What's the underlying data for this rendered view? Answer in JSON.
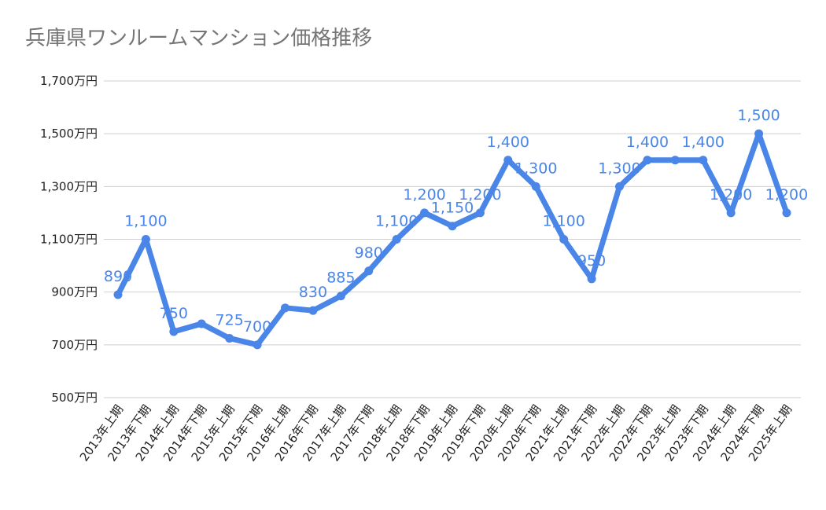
{
  "chart_data": {
    "type": "line",
    "title": "兵庫県ワンルームマンション価格推移",
    "xlabel": "",
    "ylabel": "",
    "ylim": [
      500,
      1700
    ],
    "yticks": [
      "500万円",
      "700万円",
      "900万円",
      "1,100万円",
      "1,300万円",
      "1,500万円",
      "1,700万円"
    ],
    "ytick_values": [
      500,
      700,
      900,
      1100,
      1300,
      1500,
      1700
    ],
    "grid": true,
    "legend": "none",
    "line_color": "#4a86e8",
    "label_color": "#4a86e8",
    "categories": [
      "2013年上期",
      "2013年下期",
      "2014年上期",
      "2014年下期",
      "2015年上期",
      "2015年下期",
      "2016年上期",
      "2016年下期",
      "2017年上期",
      "2017年下期",
      "2018年上期",
      "2018年下期",
      "2019年上期",
      "2019年下期",
      "2020年上期",
      "2020年下期",
      "2021年上期",
      "2021年下期",
      "2022年上期",
      "2022年下期",
      "2023年上期",
      "2023年下期",
      "2024年上期",
      "2024年下期",
      "2025年上期"
    ],
    "values": [
      890,
      1100,
      750,
      780,
      725,
      700,
      840,
      830,
      885,
      980,
      1100,
      1200,
      1150,
      1200,
      1400,
      1300,
      1100,
      950,
      1300,
      1400,
      1400,
      1400,
      1200,
      1500,
      1200
    ],
    "data_labels": [
      "890",
      "1,100",
      "750",
      "",
      "725",
      "700",
      "",
      "830",
      "885",
      "980",
      "1,100",
      "1,200",
      "1,150",
      "1,200",
      "1,400",
      "1,300",
      "1,100",
      "950",
      "1,300",
      "1,400",
      "",
      "1,400",
      "1,200",
      "1,500",
      "1,200"
    ]
  }
}
